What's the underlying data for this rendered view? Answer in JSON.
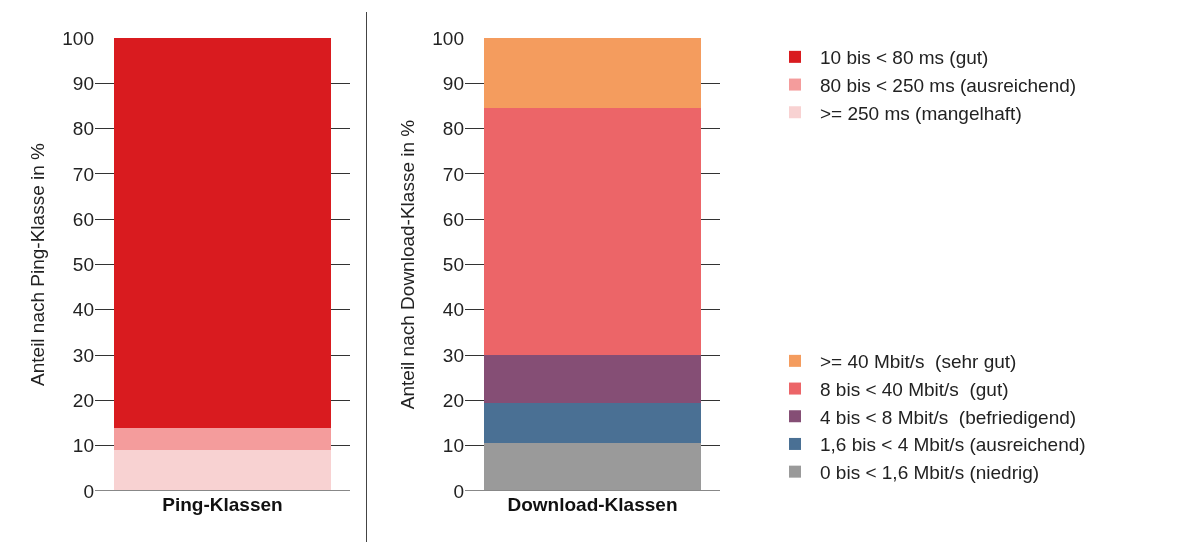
{
  "chart_data": [
    {
      "type": "bar",
      "stacked": true,
      "categories": [
        "Ping-Klassen"
      ],
      "ylabel": "Anteil nach Ping-Klasse in %",
      "ylim": [
        0,
        100
      ],
      "yticks": [
        0,
        10,
        20,
        30,
        40,
        50,
        60,
        70,
        80,
        90,
        100
      ],
      "grid": "y",
      "legend": "top right",
      "series": [
        {
          "name": ">= 250 ms (mangelhaft)",
          "color": "#f8d2d2",
          "values": [
            9
          ]
        },
        {
          "name": "80 bis < 250 ms (ausreichend)",
          "color": "#f49c9c",
          "values": [
            5
          ]
        },
        {
          "name": "10 bis < 80 ms (gut)",
          "color": "#d91b1f",
          "values": [
            86
          ]
        }
      ]
    },
    {
      "type": "bar",
      "stacked": true,
      "categories": [
        "Download-Klassen"
      ],
      "ylabel": "Anteil nach Download-Klasse in %",
      "ylim": [
        0,
        100
      ],
      "yticks": [
        0,
        10,
        20,
        30,
        40,
        50,
        60,
        70,
        80,
        90,
        100
      ],
      "grid": "y",
      "legend": "bottom right",
      "series": [
        {
          "name": "0 bis < 1,6 Mbit/s (niedrig)",
          "color": "#9a9a9a",
          "values": [
            10.5
          ]
        },
        {
          "name": "1,6 bis < 4 Mbit/s (ausreichend)",
          "color": "#4a7094",
          "values": [
            9
          ]
        },
        {
          "name": "4 bis < 8 Mbit/s  (befriedigend)",
          "color": "#854e75",
          "values": [
            10.5
          ]
        },
        {
          "name": "8 bis < 40 Mbit/s  (gut)",
          "color": "#ec6568",
          "values": [
            54.5
          ]
        },
        {
          "name": ">= 40 Mbit/s  (sehr gut)",
          "color": "#f49c5e",
          "values": [
            15.5
          ]
        }
      ]
    }
  ]
}
